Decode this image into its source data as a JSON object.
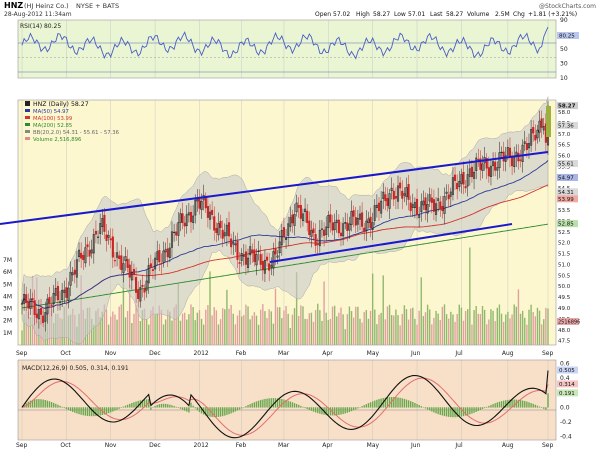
{
  "header": {
    "symbol": "HNZ",
    "company": "(HJ Heinz Co.)",
    "exchange": "NYSE + BATS",
    "datetime": "28-Aug-2012 11:34am",
    "open_label": "Open",
    "open": "57.02",
    "high_label": "High",
    "high": "58.27",
    "low_label": "Low",
    "low": "57.01",
    "last_label": "Last",
    "last": "58.27",
    "volume_label": "Volume",
    "volume": "2.5M",
    "chg_label": "Chg",
    "chg": "+1.81 (+3.21%)",
    "watermark": "@StockCharts.com"
  },
  "rsi_panel": {
    "legend": "RSI(14) 80.25",
    "ticks": [
      90,
      70,
      50,
      30,
      10
    ],
    "value_label": "80.25"
  },
  "price_panel": {
    "legend_title": "HNZ (Daily) 58.27",
    "legend_items": [
      {
        "text": "MA(50) 54.97",
        "color": "#2b3a9b"
      },
      {
        "text": "MA(100) 53.99",
        "color": "#d2332a"
      },
      {
        "text": "MA(200) 52.85",
        "color": "#2e8b2e"
      },
      {
        "text": "BB(20,2.0) 54.31 - 55.61 - 57.36",
        "color": "#888888"
      },
      {
        "text": "Volume 2,516,896",
        "color": "#e08a8a"
      }
    ],
    "price_ticks": [
      "58.0",
      "57.5",
      "57.0",
      "56.5",
      "56.0",
      "55.5",
      "55.0",
      "54.5",
      "54.0",
      "53.5",
      "53.0",
      "52.5",
      "52.0",
      "51.5",
      "51.0",
      "50.5",
      "50.0",
      "49.5",
      "49.0",
      "48.5",
      "48.0",
      "47.5"
    ],
    "volume_ticks": [
      "7M",
      "6M",
      "5M",
      "4M",
      "3M",
      "2M",
      "1M"
    ],
    "right_labels": [
      "58.27",
      "57.36",
      "55.61",
      "54.97",
      "54.31",
      "53.99",
      "52.85"
    ],
    "volume_label": "2516896"
  },
  "macd_panel": {
    "legend": "MACD(12,26,9) 0.505, 0.314, 0.191",
    "ticks": [
      "0.6",
      "0.4",
      "0.2",
      "0.0",
      "-0.2",
      "-0.4"
    ],
    "right_labels": [
      "0.505",
      "0.314",
      "0.191"
    ]
  },
  "x_axis_labels": [
    "Sep",
    "Oct",
    "Nov",
    "Dec",
    "2012",
    "Feb",
    "Mar",
    "Apr",
    "May",
    "Jun",
    "Jul",
    "Aug",
    "Sep"
  ],
  "colors": {
    "rsi_bg": "#eaf5d4",
    "price_bg": "#fdf7d0",
    "macd_bg": "#f8e0c8",
    "trendline": "#1a1acc",
    "bollinger": "#bdbdbd",
    "candle_up": "#222222",
    "candle_down": "#cc2222",
    "volume": "#e0a0a0",
    "volume_up": "#90b870"
  },
  "chart_data": {
    "type": "candlestick",
    "symbol": "HNZ",
    "x_range": [
      "Sep 2011",
      "Aug 28 2012"
    ],
    "price_ylim": [
      47.5,
      58.5
    ],
    "price_close_path": [
      [
        "Sep 1",
        49.2
      ],
      [
        "Sep 15",
        48.8
      ],
      [
        "Sep 30",
        49.6
      ],
      [
        "Oct 15",
        51.2
      ],
      [
        "Oct 31",
        52.7
      ],
      [
        "Nov 10",
        51.3
      ],
      [
        "Nov 25",
        49.8
      ],
      [
        "Dec 5",
        51.2
      ],
      [
        "Dec 20",
        52.6
      ],
      [
        "Dec 30",
        53.9
      ],
      [
        "Jan 15",
        52.9
      ],
      [
        "Jan 31",
        51.6
      ],
      [
        "Feb 10",
        51.2
      ],
      [
        "Feb 25",
        51.2
      ],
      [
        "Mar 1",
        53.7
      ],
      [
        "Mar 15",
        52.3
      ],
      [
        "Mar 31",
        52.8
      ],
      [
        "Apr 15",
        52.9
      ],
      [
        "Apr 30",
        53.1
      ],
      [
        "May 15",
        54.5
      ],
      [
        "May 31",
        53.8
      ],
      [
        "Jun 15",
        53.6
      ],
      [
        "Jun 30",
        54.3
      ],
      [
        "Jul 15",
        55.3
      ],
      [
        "Jul 31",
        55.6
      ],
      [
        "Aug 15",
        55.9
      ],
      [
        "Aug 24",
        56.4
      ],
      [
        "Aug 28",
        58.27
      ]
    ],
    "moving_averages": {
      "MA50": {
        "last": 54.97
      },
      "MA100": {
        "last": 53.99
      },
      "MA200": {
        "last": 52.85
      }
    },
    "bollinger": {
      "lower": 54.31,
      "middle": 55.61,
      "upper": 57.36
    },
    "volume": {
      "last": 2516896,
      "ylim_millions": [
        0,
        7
      ]
    },
    "rsi": {
      "period": 14,
      "last": 80.25,
      "ylim": [
        10,
        90
      ],
      "guides": [
        70,
        50,
        30
      ]
    },
    "macd": {
      "params": [
        12,
        26,
        9
      ],
      "macd": 0.505,
      "signal": 0.314,
      "histogram": 0.191,
      "ylim": [
        -0.45,
        0.65
      ]
    }
  }
}
